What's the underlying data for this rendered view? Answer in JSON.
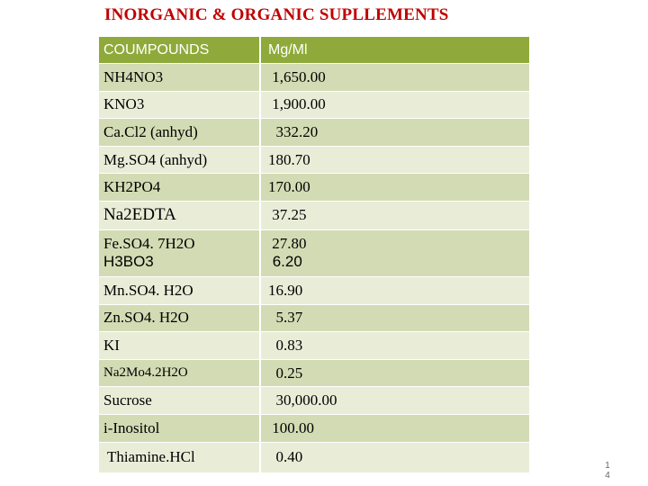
{
  "title": "INORGANIC & ORGANIC SUPLLEMENTS",
  "table": {
    "headers": [
      "COUMPOUNDS",
      "Mg/Ml"
    ],
    "rows": [
      {
        "compound": "NH4NO3",
        "value": " 1,650.00"
      },
      {
        "compound": "KNO3",
        "value": " 1,900.00"
      },
      {
        "compound": "Ca.Cl2 (anhyd)",
        "value": "  332.20"
      },
      {
        "compound": "Mg.SO4 (anhyd)",
        "value": "180.70"
      },
      {
        "compound": "KH2PO4",
        "value": "170.00"
      },
      {
        "compound": "Na2EDTA",
        "value": " 37.25"
      },
      {
        "compound": "Fe.SO4. 7H2O",
        "compound2": "H3BO3",
        "value": " 27.80",
        "value2": " 6.20"
      },
      {
        "compound": "Mn.SO4. H2O",
        "value": "16.90"
      },
      {
        "compound": "Zn.SO4. H2O",
        "value": "  5.37"
      },
      {
        "compound": "KI",
        "value": "  0.83"
      },
      {
        "compound": "Na2Mo4.2H2O",
        "value": "  0.25"
      },
      {
        "compound": "Sucrose",
        "value": "  30,000.00"
      },
      {
        "compound": "i-Inositol",
        "value": " 100.00"
      },
      {
        "compound": " Thiamine.HCl",
        "value": "  0.40"
      }
    ]
  },
  "page_number": {
    "line1": "1",
    "line2": "4"
  }
}
